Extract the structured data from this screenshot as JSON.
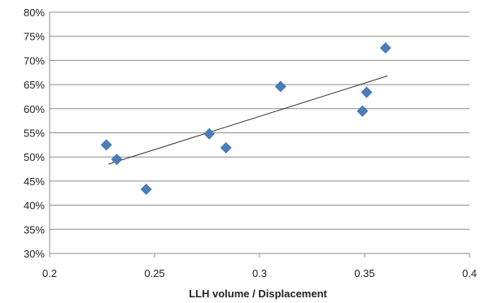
{
  "chart_data": {
    "type": "scatter",
    "title": "",
    "xlabel": "LLH volume / Displacement",
    "ylabel": "",
    "xlim": [
      0.2,
      0.4
    ],
    "ylim": [
      0.3,
      0.8
    ],
    "x_ticks": [
      0.2,
      0.25,
      0.3,
      0.35,
      0.4
    ],
    "x_tick_labels": [
      "0.2",
      "0.25",
      "0.3",
      "0.35",
      "0.4"
    ],
    "y_ticks": [
      0.3,
      0.35,
      0.4,
      0.45,
      0.5,
      0.55,
      0.6,
      0.65,
      0.7,
      0.75,
      0.8
    ],
    "y_tick_labels": [
      "30%",
      "35%",
      "40%",
      "45%",
      "50%",
      "55%",
      "60%",
      "65%",
      "70%",
      "75%",
      "80%"
    ],
    "grid": "horizontal",
    "legend": "none",
    "marker": "diamond",
    "marker_color": "#4a7ebb",
    "trendline_color": "#333333",
    "series": [
      {
        "x": [
          0.227,
          0.232,
          0.246,
          0.276,
          0.284,
          0.31,
          0.349,
          0.351,
          0.36
        ],
        "y": [
          0.525,
          0.495,
          0.433,
          0.548,
          0.519,
          0.646,
          0.595,
          0.634,
          0.726
        ]
      }
    ],
    "trendline": {
      "type": "linear",
      "x": [
        0.228,
        0.361
      ],
      "y": [
        0.485,
        0.668
      ]
    }
  }
}
